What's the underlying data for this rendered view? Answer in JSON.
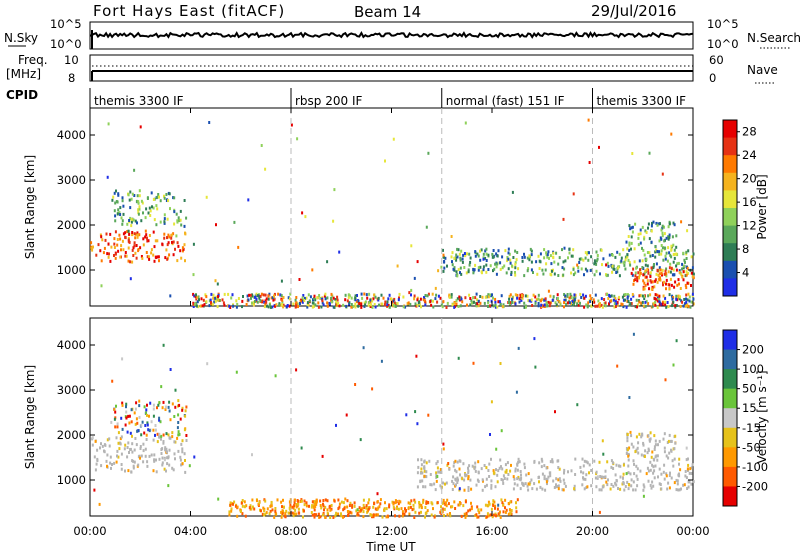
{
  "header": {
    "title": "Fort Hays East (fitACF)",
    "beam": "Beam 14",
    "date": "29/Jul/2016"
  },
  "status_panels": {
    "nsky_label": "N.Sky",
    "nsky_ticks": [
      "10^5",
      "10^0"
    ],
    "nsearch_label": "N.Search",
    "nsearch_ticks": [
      "10^5",
      "10^0"
    ],
    "freq_label": "Freq.",
    "freq_unit": "[MHz]",
    "freq_ticks": [
      "10",
      "8"
    ],
    "nave_label": "Nave",
    "nave_ticks": [
      "60",
      "0"
    ],
    "cpid_label": "CPID",
    "cpid_segments": [
      {
        "label": "themis 3300 IF",
        "start": 0,
        "end": 8
      },
      {
        "label": "rbsp 200 IF",
        "start": 8,
        "end": 14
      },
      {
        "label": "normal (fast) 151 IF",
        "start": 14,
        "end": 20
      },
      {
        "label": "themis 3300 IF",
        "start": 20,
        "end": 24
      }
    ]
  },
  "x_axis": {
    "label": "Time UT",
    "ticks": [
      "00:00",
      "04:00",
      "08:00",
      "12:00",
      "16:00",
      "20:00",
      "00:00"
    ]
  },
  "colors": {
    "power_scale": [
      "#1f2ee6",
      "#1a4fb0",
      "#2e7d55",
      "#5aa85a",
      "#8fd15a",
      "#e6e63a",
      "#f5b31e",
      "#ff7a00",
      "#e63214",
      "#e60000"
    ],
    "velocity_scale": [
      "#1f2ee6",
      "#2e6ba0",
      "#2e8a4e",
      "#6ac53a",
      "#c8c8c8",
      "#e6c21a",
      "#ff9900",
      "#ff5a00",
      "#e60000"
    ],
    "ground_scatter": "#b4b4b4"
  },
  "chart_data": [
    {
      "type": "heatmap",
      "name": "power",
      "ylabel": "Slant Range [km]",
      "yticks": [
        "1000",
        "2000",
        "3000",
        "4000"
      ],
      "ylim": [
        200,
        4600
      ],
      "xlim": [
        0,
        24
      ],
      "colorbar": {
        "label": "Power [dB]",
        "ticks": [
          "4",
          "8",
          "12",
          "16",
          "20",
          "24",
          "28"
        ],
        "range": [
          0,
          30
        ]
      },
      "features": [
        {
          "t0": 0.0,
          "t1": 3.8,
          "r0": 1200,
          "r1": 1900,
          "level": "high"
        },
        {
          "t0": 0.8,
          "t1": 3.8,
          "r0": 2000,
          "r1": 2800,
          "level": "mid"
        },
        {
          "t0": 14.0,
          "t1": 24.0,
          "r0": 900,
          "r1": 1500,
          "level": "mid"
        },
        {
          "t0": 21.5,
          "t1": 24.0,
          "r0": 600,
          "r1": 1100,
          "level": "high"
        },
        {
          "t0": 21.3,
          "t1": 23.3,
          "r0": 1500,
          "r1": 2100,
          "level": "mid"
        },
        {
          "t0": 4.0,
          "t1": 24.0,
          "r0": 200,
          "r1": 500,
          "level": "mixed"
        }
      ]
    },
    {
      "type": "heatmap",
      "name": "velocity",
      "ylabel": "Slant Range [km]",
      "yticks": [
        "1000",
        "2000",
        "3000",
        "4000"
      ],
      "ylim": [
        200,
        4600
      ],
      "xlim": [
        0,
        24
      ],
      "colorbar": {
        "label": "Velocity [m s⁻¹]",
        "ticks": [
          "200",
          "100",
          "50",
          "15",
          "-15",
          "-50",
          "-100",
          "-200"
        ],
        "range": [
          -250,
          250
        ]
      },
      "features": [
        {
          "t0": 0.0,
          "t1": 3.8,
          "r0": 1200,
          "r1": 2000,
          "level": "ground"
        },
        {
          "t0": 0.8,
          "t1": 3.8,
          "r0": 2000,
          "r1": 2800,
          "level": "mixed"
        },
        {
          "t0": 13.0,
          "t1": 24.0,
          "r0": 800,
          "r1": 1500,
          "level": "ground"
        },
        {
          "t0": 21.3,
          "t1": 23.3,
          "r0": 1500,
          "r1": 2100,
          "level": "ground"
        },
        {
          "t0": 5.5,
          "t1": 17.0,
          "r0": 200,
          "r1": 600,
          "level": "negative"
        }
      ]
    }
  ]
}
